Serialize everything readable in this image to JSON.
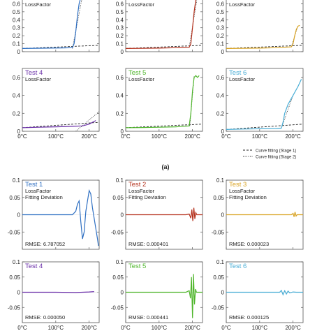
{
  "figure": {
    "caption_a": "(a)",
    "legend_stage1": "Curve fitting (Stage 1)",
    "legend_stage2": "Curve fitting (Stage 2)"
  },
  "colors": {
    "test1": "#2e6fc2",
    "test2": "#b5321e",
    "test3": "#d9a322",
    "test4": "#6a2fa8",
    "test5": "#4fb62c",
    "test6": "#4aaed6",
    "fit": "#222222",
    "axis": "#444444"
  },
  "chart_data": [
    {
      "panel": "a1",
      "type": "line",
      "title": "",
      "subtitle": "LossFactor",
      "color_key": "test1",
      "xlim": [
        0,
        230
      ],
      "ylim": [
        0,
        0.7
      ],
      "yticks": [
        0,
        0.1,
        0.2,
        0.3,
        0.4,
        0.5,
        0.6
      ],
      "xticks": [
        0,
        100,
        200
      ],
      "xticklabels": [
        "0°C",
        "100°C",
        "200°C"
      ],
      "show_xticklabels": false,
      "series": [
        {
          "x": [
            0,
            40,
            80,
            120,
            150,
            155,
            160,
            165,
            170,
            175,
            178
          ],
          "y": [
            0.04,
            0.043,
            0.045,
            0.047,
            0.05,
            0.1,
            0.25,
            0.45,
            0.6,
            0.68,
            0.7
          ]
        }
      ],
      "fit1": {
        "x": [
          0,
          230
        ],
        "y": [
          0.04,
          0.08
        ]
      },
      "fit2": {
        "x": [
          150,
          180
        ],
        "y": [
          0.04,
          0.7
        ]
      }
    },
    {
      "panel": "a2",
      "type": "line",
      "title": "",
      "subtitle": "LossFactor",
      "color_key": "test2",
      "xlim": [
        0,
        230
      ],
      "ylim": [
        0,
        0.7
      ],
      "yticks": [
        0,
        0.1,
        0.2,
        0.3,
        0.4,
        0.5,
        0.6
      ],
      "xticks": [
        0,
        100,
        200
      ],
      "xticklabels": [
        "0°C",
        "100°C",
        "200°C"
      ],
      "show_xticklabels": false,
      "series": [
        {
          "x": [
            0,
            50,
            100,
            150,
            190,
            195,
            200,
            205,
            210,
            215
          ],
          "y": [
            0.04,
            0.042,
            0.045,
            0.05,
            0.055,
            0.1,
            0.3,
            0.5,
            0.65,
            0.7
          ]
        }
      ],
      "fit1": {
        "x": [
          0,
          230
        ],
        "y": [
          0.04,
          0.08
        ]
      },
      "fit2": {
        "x": [
          190,
          215
        ],
        "y": [
          0.05,
          0.7
        ]
      }
    },
    {
      "panel": "a3",
      "type": "line",
      "title": "",
      "subtitle": "LossFactor",
      "color_key": "test3",
      "xlim": [
        0,
        230
      ],
      "ylim": [
        0,
        0.7
      ],
      "yticks": [
        0,
        0.1,
        0.2,
        0.3,
        0.4,
        0.5,
        0.6
      ],
      "xticks": [
        0,
        100,
        200
      ],
      "xticklabels": [
        "0°C",
        "100°C",
        "200°C"
      ],
      "show_xticklabels": false,
      "series": [
        {
          "x": [
            0,
            50,
            100,
            150,
            195,
            200,
            205,
            210,
            215,
            220
          ],
          "y": [
            0.04,
            0.042,
            0.045,
            0.05,
            0.06,
            0.1,
            0.2,
            0.28,
            0.32,
            0.33
          ]
        }
      ],
      "fit1": {
        "x": [
          0,
          230
        ],
        "y": [
          0.04,
          0.08
        ]
      },
      "fit2": {
        "x": [
          195,
          215
        ],
        "y": [
          0.06,
          0.33
        ]
      }
    },
    {
      "panel": "a4",
      "type": "line",
      "title": "Test 4",
      "subtitle": "LossFactor",
      "color_key": "test4",
      "xlim": [
        0,
        230
      ],
      "ylim": [
        0,
        0.7
      ],
      "yticks": [
        0,
        0.2,
        0.4,
        0.6
      ],
      "xticks": [
        0,
        100,
        200
      ],
      "xticklabels": [
        "0°C",
        "100°C",
        "200°C"
      ],
      "show_xticklabels": true,
      "series": [
        {
          "x": [
            0,
            50,
            100,
            150,
            180,
            200,
            220
          ],
          "y": [
            0.04,
            0.045,
            0.05,
            0.055,
            0.06,
            0.08,
            0.12
          ]
        }
      ],
      "fit1": {
        "x": [
          0,
          230
        ],
        "y": [
          0.04,
          0.1
        ]
      },
      "fit2": {
        "x": [
          160,
          230
        ],
        "y": [
          0,
          0.22
        ]
      }
    },
    {
      "panel": "a5",
      "type": "line",
      "title": "Test 5",
      "subtitle": "LossFactor",
      "color_key": "test5",
      "xlim": [
        0,
        230
      ],
      "ylim": [
        0,
        0.7
      ],
      "yticks": [
        0,
        0.2,
        0.4,
        0.6
      ],
      "xticks": [
        0,
        100,
        200
      ],
      "xticklabels": [
        "0°C",
        "100°C",
        "200°C"
      ],
      "show_xticklabels": true,
      "series": [
        {
          "x": [
            0,
            50,
            100,
            150,
            190,
            195,
            200,
            205,
            210,
            215,
            220
          ],
          "y": [
            0.04,
            0.042,
            0.045,
            0.05,
            0.06,
            0.2,
            0.45,
            0.6,
            0.62,
            0.6,
            0.62
          ]
        }
      ],
      "fit1": {
        "x": [
          0,
          230
        ],
        "y": [
          0.04,
          0.08
        ]
      },
      "fit2": {
        "x": [
          192,
          205
        ],
        "y": [
          0.06,
          0.62
        ]
      }
    },
    {
      "panel": "a6",
      "type": "line",
      "title": "Test 6",
      "subtitle": "LossFactor",
      "color_key": "test6",
      "xlim": [
        0,
        230
      ],
      "ylim": [
        0,
        0.7
      ],
      "yticks": [
        0,
        0.2,
        0.4,
        0.6
      ],
      "xticks": [
        0,
        100,
        200
      ],
      "xticklabels": [
        "0°C",
        "100°C",
        "200°C"
      ],
      "show_xticklabels": true,
      "series": [
        {
          "x": [
            0,
            50,
            100,
            150,
            165,
            170,
            175,
            185,
            200,
            215,
            225
          ],
          "y": [
            0.02,
            0.025,
            0.028,
            0.03,
            0.035,
            0.1,
            0.2,
            0.3,
            0.4,
            0.5,
            0.58
          ]
        }
      ],
      "fit1": {
        "x": [
          0,
          230
        ],
        "y": [
          0.02,
          0.08
        ]
      },
      "fit2": {
        "x": [
          165,
          200
        ],
        "y": [
          0.035,
          0.4
        ]
      }
    },
    {
      "panel": "b1",
      "type": "line",
      "title": "Test 1",
      "subtitle": "LossFactor",
      "subtitle2": "Fitting Deviation",
      "color_key": "test1",
      "xlim": [
        0,
        230
      ],
      "ylim": [
        -0.1,
        0.1
      ],
      "yticks": [
        -0.05,
        0,
        0.05,
        0.1
      ],
      "yticklabels": [
        "-0.05",
        "0",
        "0.05",
        "0.1"
      ],
      "xticks": [
        0,
        100,
        200
      ],
      "xticklabels": [
        "0°C",
        "100°C",
        "200°C"
      ],
      "show_xticklabels": false,
      "rmse": "RMSE: 6.787052",
      "series": [
        {
          "x": [
            0,
            150,
            160,
            165,
            170,
            175,
            180,
            185,
            190,
            195,
            200,
            205,
            210,
            215,
            220,
            225,
            228
          ],
          "y": [
            0,
            0,
            0.01,
            0.03,
            0.04,
            -0.02,
            -0.07,
            -0.05,
            0.01,
            0.04,
            0.07,
            0.06,
            0.02,
            -0.01,
            -0.04,
            -0.07,
            -0.09
          ]
        }
      ]
    },
    {
      "panel": "b2",
      "type": "line",
      "title": "Test 2",
      "subtitle": "LossFactor",
      "subtitle2": "Fitting Deviation",
      "color_key": "test2",
      "xlim": [
        0,
        230
      ],
      "ylim": [
        -0.1,
        0.1
      ],
      "yticks": [
        -0.05,
        0,
        0.05,
        0.1
      ],
      "yticklabels": [
        "-0.05",
        "0",
        "0.05",
        "0.1"
      ],
      "xticks": [
        0,
        100,
        200
      ],
      "xticklabels": [
        "0°C",
        "100°C",
        "200°C"
      ],
      "show_xticklabels": false,
      "rmse": "RMSE: 0.000401",
      "series": [
        {
          "x": [
            0,
            180,
            190,
            195,
            198,
            201,
            204,
            207,
            210,
            213,
            230
          ],
          "y": [
            0,
            0,
            0.002,
            -0.01,
            0.015,
            -0.018,
            0.02,
            -0.012,
            0.006,
            0,
            0
          ]
        }
      ]
    },
    {
      "panel": "b3",
      "type": "line",
      "title": "Test 3",
      "subtitle": "LossFactor",
      "subtitle2": "Fitting Deviation",
      "color_key": "test3",
      "xlim": [
        0,
        230
      ],
      "ylim": [
        -0.1,
        0.1
      ],
      "yticks": [
        -0.05,
        0,
        0.05,
        0.1
      ],
      "yticklabels": [
        "-0.05",
        "0",
        "0.05",
        "0.1"
      ],
      "xticks": [
        0,
        100,
        200
      ],
      "xticklabels": [
        "0°C",
        "100°C",
        "200°C"
      ],
      "show_xticklabels": false,
      "rmse": "RMSE: 0.000023",
      "series": [
        {
          "x": [
            0,
            195,
            200,
            203,
            206,
            209,
            212,
            230
          ],
          "y": [
            0,
            0,
            0.004,
            -0.006,
            0.008,
            -0.004,
            0,
            0
          ]
        }
      ]
    },
    {
      "panel": "b4",
      "type": "line",
      "title": "Test 4",
      "subtitle": "",
      "color_key": "test4",
      "xlim": [
        0,
        230
      ],
      "ylim": [
        -0.1,
        0.1
      ],
      "yticks": [
        -0.05,
        0,
        0.05,
        0.1
      ],
      "yticklabels": [
        "-0.05",
        "0",
        "0.05",
        "0.1"
      ],
      "xticks": [
        0,
        100,
        200
      ],
      "xticklabels": [
        "0°C",
        "100°C",
        "200°C"
      ],
      "show_xticklabels": true,
      "rmse": "RMSE: 0.000050",
      "series": [
        {
          "x": [
            0,
            100,
            160,
            200,
            215
          ],
          "y": [
            0,
            0,
            -0.001,
            0.001,
            0.002
          ]
        }
      ]
    },
    {
      "panel": "b5",
      "type": "line",
      "title": "Test 5",
      "subtitle": "",
      "color_key": "test5",
      "xlim": [
        0,
        230
      ],
      "ylim": [
        -0.1,
        0.1
      ],
      "yticks": [
        -0.05,
        0,
        0.05,
        0.1
      ],
      "yticklabels": [
        "-0.05",
        "0",
        "0.05",
        "0.1"
      ],
      "xticks": [
        0,
        100,
        200
      ],
      "xticklabels": [
        "0°C",
        "100°C",
        "200°C"
      ],
      "show_xticklabels": true,
      "rmse": "RMSE: 0.000441",
      "series": [
        {
          "x": [
            0,
            180,
            190,
            194,
            197,
            200,
            203,
            206,
            209,
            212,
            230
          ],
          "y": [
            0,
            0,
            0.005,
            -0.02,
            0.05,
            -0.085,
            0.06,
            -0.04,
            0.01,
            0,
            0
          ]
        }
      ]
    },
    {
      "panel": "b6",
      "type": "line",
      "title": "Test 6",
      "subtitle": "",
      "color_key": "test6",
      "xlim": [
        0,
        230
      ],
      "ylim": [
        -0.1,
        0.1
      ],
      "yticks": [
        -0.05,
        0,
        0.05,
        0.1
      ],
      "yticklabels": [
        "-0.05",
        "0",
        "0.05",
        "0.1"
      ],
      "xticks": [
        0,
        100,
        200
      ],
      "xticklabels": [
        "0°C",
        "100°C",
        "200°C"
      ],
      "show_xticklabels": true,
      "rmse": "RMSE: 0.000125",
      "series": [
        {
          "x": [
            0,
            160,
            165,
            170,
            175,
            180,
            185,
            190,
            200,
            210,
            230
          ],
          "y": [
            0,
            0,
            0.006,
            -0.008,
            0.005,
            -0.006,
            0.004,
            -0.002,
            0.001,
            0,
            0
          ]
        }
      ]
    }
  ]
}
